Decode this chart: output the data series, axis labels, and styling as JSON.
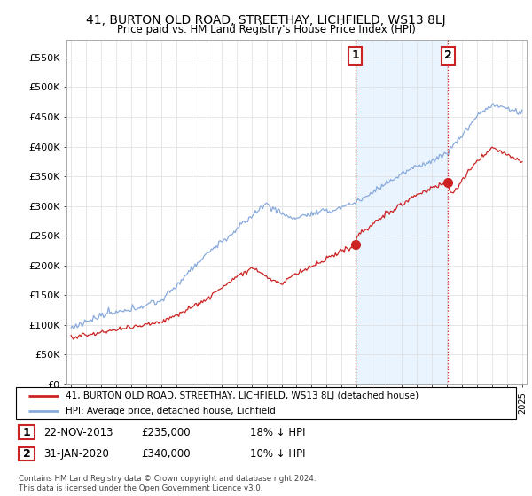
{
  "title": "41, BURTON OLD ROAD, STREETHAY, LICHFIELD, WS13 8LJ",
  "subtitle": "Price paid vs. HM Land Registry's House Price Index (HPI)",
  "ylabel_ticks": [
    "£0",
    "£50K",
    "£100K",
    "£150K",
    "£200K",
    "£250K",
    "£300K",
    "£350K",
    "£400K",
    "£450K",
    "£500K",
    "£550K"
  ],
  "ytick_values": [
    0,
    50000,
    100000,
    150000,
    200000,
    250000,
    300000,
    350000,
    400000,
    450000,
    500000,
    550000
  ],
  "ylim": [
    0,
    580000
  ],
  "red_line_color": "#cc2222",
  "blue_line_color": "#88aadd",
  "background_color": "#ffffff",
  "grid_color": "#dddddd",
  "sale1_date_x": 2013.9,
  "sale1_price": 235000,
  "sale1_label": "1",
  "sale2_date_x": 2020.08,
  "sale2_price": 340000,
  "sale2_label": "2",
  "annotation_box_color": "#cc2222",
  "highlight_fill": "#ddeeff",
  "legend_red_label": "41, BURTON OLD ROAD, STREETHAY, LICHFIELD, WS13 8LJ (detached house)",
  "legend_blue_label": "HPI: Average price, detached house, Lichfield",
  "table_row1": [
    "1",
    "22-NOV-2013",
    "£235,000",
    "18% ↓ HPI"
  ],
  "table_row2": [
    "2",
    "31-JAN-2020",
    "£340,000",
    "10% ↓ HPI"
  ],
  "footer": "Contains HM Land Registry data © Crown copyright and database right 2024.\nThis data is licensed under the Open Government Licence v3.0.",
  "xmin": 1995,
  "xmax": 2025
}
